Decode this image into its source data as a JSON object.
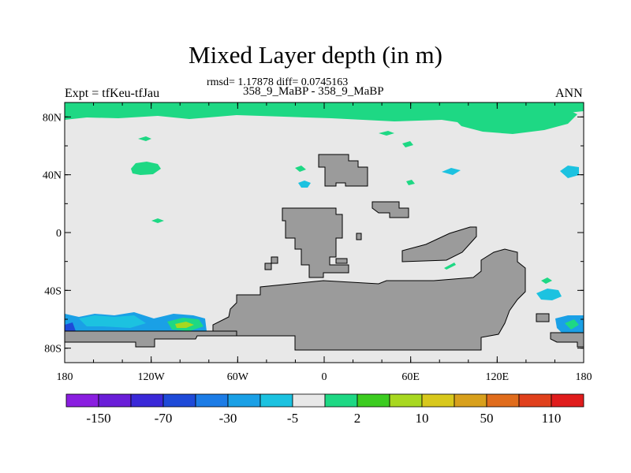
{
  "title": "Mixed Layer depth (in m)",
  "stats": "rmsd= 1.17878  diff= 0.0745163",
  "runs": "358_9_MaBP - 358_9_MaBP",
  "expt": "Expt = tfKeu-tfJau",
  "season": "ANN",
  "map": {
    "lon_range": [
      -180,
      180
    ],
    "lat_range": [
      -90,
      90
    ],
    "x_ticks": [
      {
        "lon": -180,
        "label": "180"
      },
      {
        "lon": -120,
        "label": "120W"
      },
      {
        "lon": -60,
        "label": "60W"
      },
      {
        "lon": 0,
        "label": "0"
      },
      {
        "lon": 60,
        "label": "60E"
      },
      {
        "lon": 120,
        "label": "120E"
      },
      {
        "lon": 180,
        "label": "180"
      }
    ],
    "y_ticks": [
      {
        "lat": 80,
        "label": "80N"
      },
      {
        "lat": 40,
        "label": "40N"
      },
      {
        "lat": 0,
        "label": "0"
      },
      {
        "lat": -40,
        "label": "40S"
      },
      {
        "lat": -80,
        "label": "80S"
      }
    ],
    "colors": {
      "ocean_background": "#e8e8e8",
      "land": "#9b9b9b"
    }
  },
  "colorbar": {
    "colors": [
      "#8a1ee0",
      "#6a1ed8",
      "#3a28d8",
      "#1e4ad8",
      "#1c7ce6",
      "#1aa0e6",
      "#1cc2e0",
      "#e8e8e8",
      "#1ed884",
      "#3ccc20",
      "#a8d820",
      "#d8c81c",
      "#d8a01c",
      "#e06c1c",
      "#e0401c",
      "#e01c1c"
    ],
    "labels": [
      {
        "after_box": 1,
        "label": "-150"
      },
      {
        "after_box": 3,
        "label": "-70"
      },
      {
        "after_box": 5,
        "label": "-30"
      },
      {
        "after_box": 7,
        "label": "-5"
      },
      {
        "after_box": 9,
        "label": "2"
      },
      {
        "after_box": 11,
        "label": "10"
      },
      {
        "after_box": 13,
        "label": "50"
      },
      {
        "after_box": 15,
        "label": "110"
      }
    ]
  }
}
